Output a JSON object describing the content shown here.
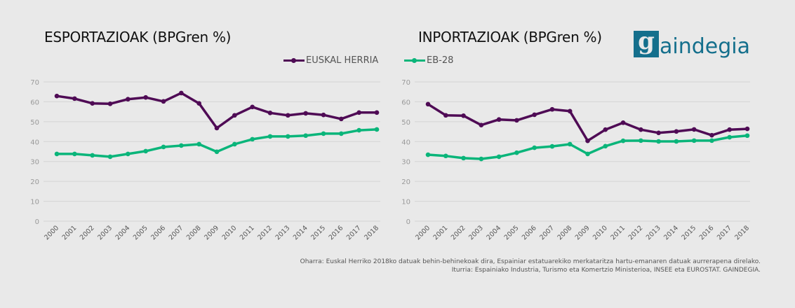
{
  "titles": {
    "left": "ESPORTAZIOAK (BPGren %)",
    "right": "INPORTAZIOAK (BPGren %)"
  },
  "legend": {
    "eh_label": "EUSKAL HERRIA",
    "eu_label": "EB-28"
  },
  "colors": {
    "eh": "#4f0b55",
    "eu": "#0ab57a",
    "grid": "#d4d4d4",
    "tick": "#9a9a9a",
    "brand": "#146f8c"
  },
  "logo": {
    "first_letter": "g",
    "rest": "aindegia"
  },
  "notes": {
    "line1": "Oharra: Euskal Herriko 2018ko datuak behin-behinekoak dira, Espainiar estatuarekiko merkataritza hartu-emanaren datuak aurrerapena  direlako.",
    "line2": "Iturria: Espainiako Industria,  Turismo eta Komertzio Ministerioa, INSEE eta EUROSTAT. GAINDEGIA."
  },
  "chart_data": [
    {
      "type": "line",
      "title": "ESPORTAZIOAK (BPGren %)",
      "xlabel": "",
      "ylabel": "",
      "ylim": [
        0,
        70
      ],
      "yticks": [
        0,
        10,
        20,
        30,
        40,
        50,
        60,
        70
      ],
      "grid": true,
      "legend": "top-right",
      "categories": [
        "2000",
        "2001",
        "2002",
        "2003",
        "2004",
        "2005",
        "2006",
        "2007",
        "2008",
        "2009",
        "2010",
        "2011",
        "2012",
        "2013",
        "2014",
        "2015",
        "2016",
        "2017",
        "2018"
      ],
      "series": [
        {
          "name": "EUSKAL HERRIA",
          "values": [
            62.9,
            61.6,
            59.2,
            59.0,
            61.3,
            62.2,
            60.2,
            64.4,
            59.2,
            46.8,
            53.2,
            57.4,
            54.4,
            53.2,
            54.2,
            53.4,
            51.4,
            54.6,
            54.6
          ]
        },
        {
          "name": "EB-28",
          "values": [
            33.8,
            33.8,
            33.1,
            32.4,
            33.8,
            35.2,
            37.3,
            38.0,
            38.7,
            34.9,
            38.7,
            41.2,
            42.6,
            42.6,
            43.0,
            44.0,
            44.0,
            45.7,
            46.1
          ]
        }
      ]
    },
    {
      "type": "line",
      "title": "INPORTAZIOAK (BPGren %)",
      "xlabel": "",
      "ylabel": "",
      "ylim": [
        0,
        70
      ],
      "yticks": [
        0,
        10,
        20,
        30,
        40,
        50,
        60,
        70
      ],
      "grid": true,
      "legend": "top-left",
      "categories": [
        "2000",
        "2001",
        "2002",
        "2003",
        "2004",
        "2005",
        "2006",
        "2007",
        "2008",
        "2009",
        "2010",
        "2011",
        "2012",
        "2013",
        "2014",
        "2015",
        "2016",
        "2017",
        "2018"
      ],
      "series": [
        {
          "name": "EUSKAL HERRIA",
          "values": [
            58.8,
            53.2,
            53.0,
            48.3,
            51.1,
            50.7,
            53.5,
            56.2,
            55.3,
            40.4,
            46.0,
            49.5,
            46.0,
            44.4,
            45.1,
            46.1,
            43.2,
            46.0,
            46.4
          ]
        },
        {
          "name": "EB-28",
          "values": [
            33.4,
            32.8,
            31.7,
            31.3,
            32.4,
            34.4,
            36.9,
            37.6,
            38.7,
            33.8,
            37.7,
            40.4,
            40.5,
            40.1,
            40.1,
            40.5,
            40.5,
            42.2,
            43.0
          ]
        }
      ]
    }
  ]
}
